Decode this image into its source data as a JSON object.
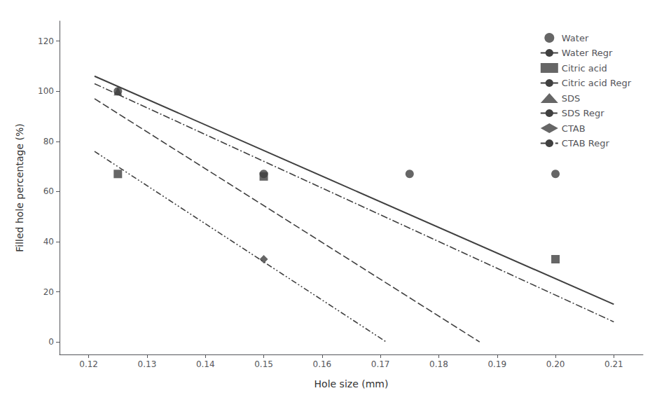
{
  "chart_data": {
    "type": "scatter",
    "xlabel": "Hole size (mm)",
    "ylabel": "Filled hole percentage (%)",
    "xlim": [
      0.115,
      0.215
    ],
    "ylim": [
      -5,
      128
    ],
    "xticks": [
      0.12,
      0.13,
      0.14,
      0.15,
      0.16,
      0.17,
      0.18,
      0.19,
      {
        "value": 0.2,
        "label": "0.20"
      },
      0.21
    ],
    "yticks": [
      0,
      20,
      40,
      60,
      80,
      100,
      120
    ],
    "grid": false,
    "legend": "upper right",
    "series": [
      {
        "name": "Water",
        "type": "scatter",
        "marker": "circle",
        "color": "#404040",
        "x": [
          0.125,
          0.15,
          0.175,
          0.2
        ],
        "values": [
          100,
          67,
          67,
          67
        ]
      },
      {
        "name": "Water Regr",
        "type": "line",
        "line_style": "solid",
        "color": "#404040",
        "x": [
          0.121,
          0.21
        ],
        "values": [
          106,
          15
        ]
      },
      {
        "name": "Citric acid",
        "type": "scatter",
        "marker": "square",
        "color": "#404040",
        "x": [
          0.125,
          0.15,
          0.2
        ],
        "values": [
          67,
          66,
          33
        ]
      },
      {
        "name": "Citric acid Regr",
        "type": "line",
        "line_style": "dashdot",
        "color": "#404040",
        "x": [
          0.121,
          0.21
        ],
        "values": [
          103,
          8
        ]
      },
      {
        "name": "SDS",
        "type": "scatter",
        "marker": "triangle",
        "color": "#404040",
        "x": [
          0.125
        ],
        "values": [
          100
        ]
      },
      {
        "name": "SDS Regr",
        "type": "line",
        "line_style": "dashed",
        "color": "#404040",
        "x": [
          0.121,
          0.187
        ],
        "values": [
          97,
          0
        ]
      },
      {
        "name": "CTAB",
        "type": "scatter",
        "marker": "diamond",
        "color": "#404040",
        "x": [
          0.15
        ],
        "values": [
          33
        ]
      },
      {
        "name": "CTAB Regr",
        "type": "line",
        "line_style": "dashdotdot",
        "color": "#404040",
        "x": [
          0.121,
          0.171
        ],
        "values": [
          76,
          0
        ]
      }
    ]
  }
}
